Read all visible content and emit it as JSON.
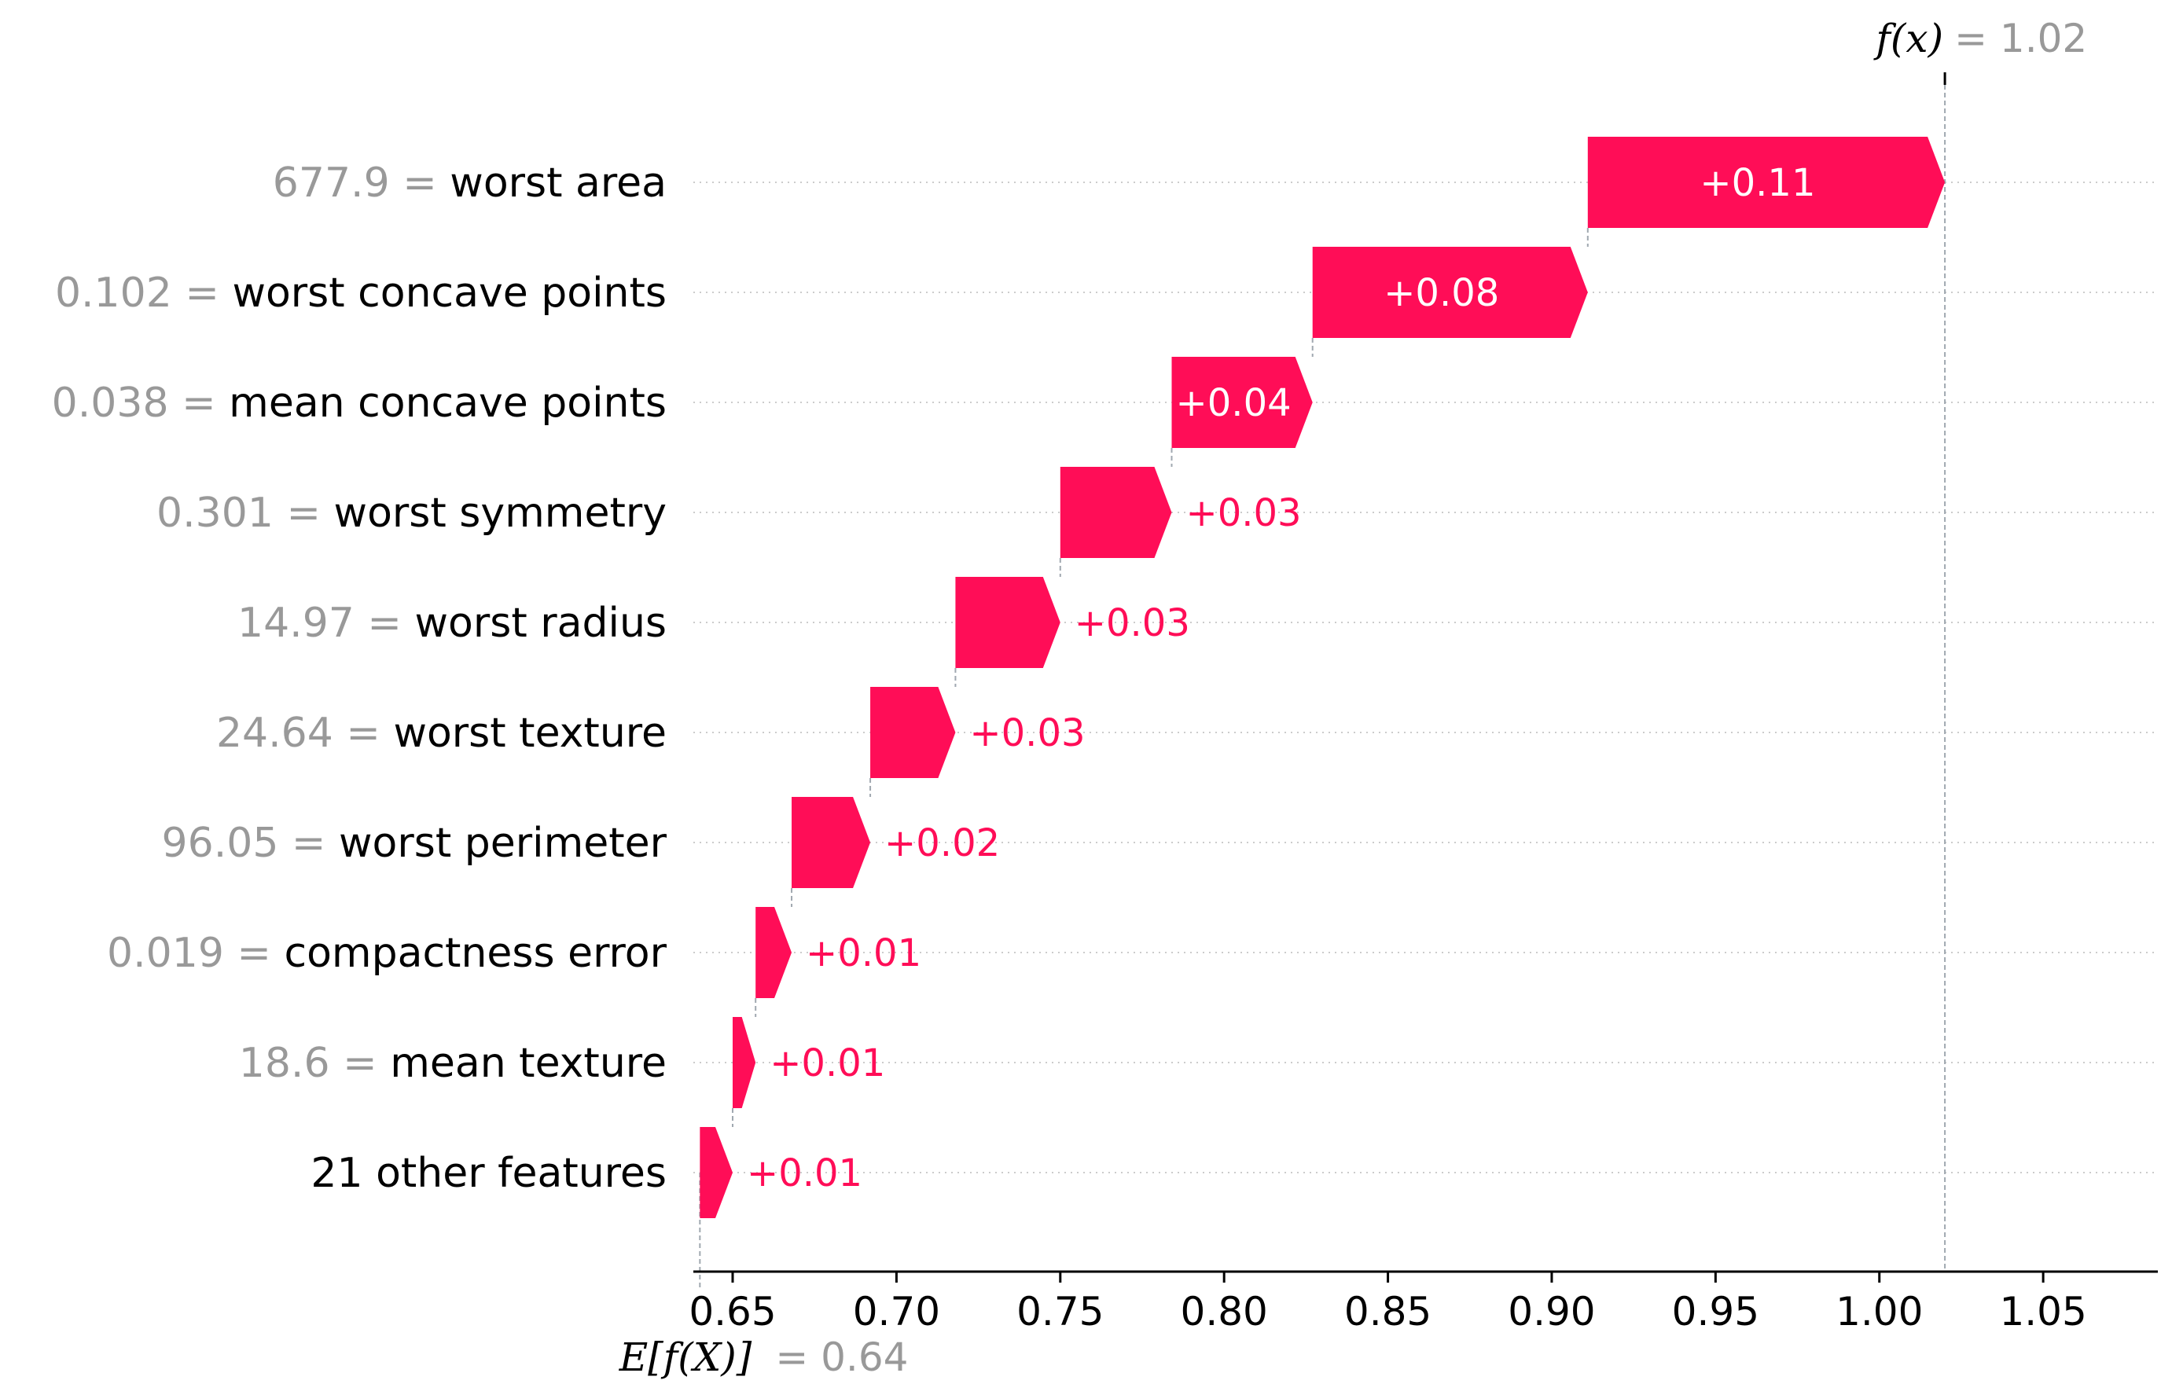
{
  "colors": {
    "positive": "#ff0d57",
    "value_text": "#999999",
    "label_text": "#000000",
    "grid": "#cccccc",
    "connector": "#a0a8b0"
  },
  "chart_data": {
    "type": "waterfall",
    "base_value": 0.64,
    "base_label": "E[f(X)]",
    "base_value_text": "= 0.64",
    "output_value": 1.02,
    "output_label": "f(x)",
    "output_value_text": "= 1.02",
    "xlim": [
      0.638,
      1.085
    ],
    "xticks": [
      0.65,
      0.7,
      0.75,
      0.8,
      0.85,
      0.9,
      0.95,
      1.0,
      1.05
    ],
    "xtick_labels": [
      "0.65",
      "0.70",
      "0.75",
      "0.80",
      "0.85",
      "0.90",
      "0.95",
      "1.00",
      "1.05"
    ],
    "features": [
      {
        "value": "677.9",
        "name": "worst area",
        "start": 0.911,
        "end": 1.02,
        "label": "+0.11"
      },
      {
        "value": "0.102",
        "name": "worst concave points",
        "start": 0.827,
        "end": 0.911,
        "label": "+0.08"
      },
      {
        "value": "0.038",
        "name": "mean concave points",
        "start": 0.784,
        "end": 0.827,
        "label": "+0.04"
      },
      {
        "value": "0.301",
        "name": "worst symmetry",
        "start": 0.75,
        "end": 0.784,
        "label": "+0.03"
      },
      {
        "value": "14.97",
        "name": "worst radius",
        "start": 0.718,
        "end": 0.75,
        "label": "+0.03"
      },
      {
        "value": "24.64",
        "name": "worst texture",
        "start": 0.692,
        "end": 0.718,
        "label": "+0.03"
      },
      {
        "value": "96.05",
        "name": "worst perimeter",
        "start": 0.668,
        "end": 0.692,
        "label": "+0.02"
      },
      {
        "value": "0.019",
        "name": "compactness error",
        "start": 0.657,
        "end": 0.668,
        "label": "+0.01"
      },
      {
        "value": "18.6",
        "name": "mean texture",
        "start": 0.65,
        "end": 0.657,
        "label": "+0.01"
      },
      {
        "value": "",
        "name": "21 other features",
        "start": 0.64,
        "end": 0.65,
        "label": "+0.01"
      }
    ]
  }
}
